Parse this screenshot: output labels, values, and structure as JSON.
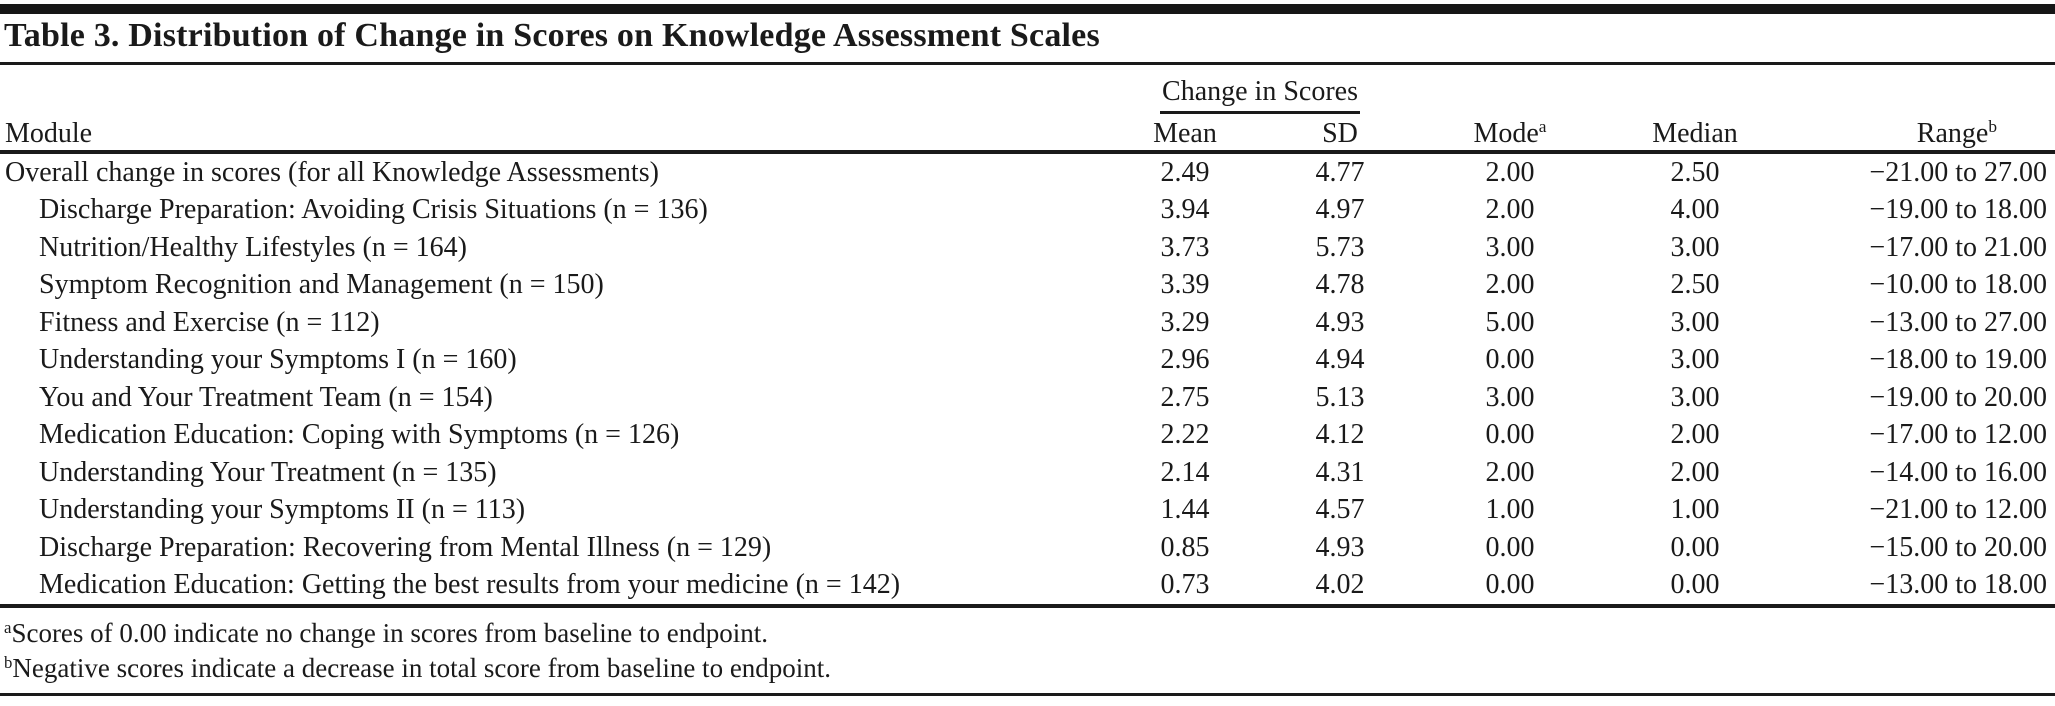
{
  "title": "Table 3. Distribution of Change in Scores on Knowledge Assessment Scales",
  "header": {
    "spanner": "Change in Scores",
    "module": "Module",
    "mean": "Mean",
    "sd": "SD",
    "mode": "Mode",
    "mode_sup": "a",
    "median": "Median",
    "range": "Range",
    "range_sup": "b"
  },
  "rows": [
    {
      "module": "Overall change in scores (for all Knowledge Assessments)",
      "mean": "2.49",
      "sd": "4.77",
      "mode": "2.00",
      "median": "2.50",
      "range": "−21.00 to 27.00"
    },
    {
      "module": "Discharge Preparation: Avoiding Crisis Situations (n = 136)",
      "mean": "3.94",
      "sd": "4.97",
      "mode": "2.00",
      "median": "4.00",
      "range": "−19.00 to 18.00"
    },
    {
      "module": "Nutrition/Healthy Lifestyles (n = 164)",
      "mean": "3.73",
      "sd": "5.73",
      "mode": "3.00",
      "median": "3.00",
      "range": "−17.00 to 21.00"
    },
    {
      "module": "Symptom Recognition and Management (n = 150)",
      "mean": "3.39",
      "sd": "4.78",
      "mode": "2.00",
      "median": "2.50",
      "range": "−10.00 to 18.00"
    },
    {
      "module": "Fitness and Exercise (n = 112)",
      "mean": "3.29",
      "sd": "4.93",
      "mode": "5.00",
      "median": "3.00",
      "range": "−13.00 to 27.00"
    },
    {
      "module": "Understanding your Symptoms I (n = 160)",
      "mean": "2.96",
      "sd": "4.94",
      "mode": "0.00",
      "median": "3.00",
      "range": "−18.00 to 19.00"
    },
    {
      "module": "You and Your Treatment Team (n = 154)",
      "mean": "2.75",
      "sd": "5.13",
      "mode": "3.00",
      "median": "3.00",
      "range": "−19.00 to 20.00"
    },
    {
      "module": "Medication Education: Coping with Symptoms (n = 126)",
      "mean": "2.22",
      "sd": "4.12",
      "mode": "0.00",
      "median": "2.00",
      "range": "−17.00 to 12.00"
    },
    {
      "module": "Understanding Your Treatment (n = 135)",
      "mean": "2.14",
      "sd": "4.31",
      "mode": "2.00",
      "median": "2.00",
      "range": "−14.00 to 16.00"
    },
    {
      "module": "Understanding your Symptoms II (n = 113)",
      "mean": "1.44",
      "sd": "4.57",
      "mode": "1.00",
      "median": "1.00",
      "range": "−21.00 to 12.00"
    },
    {
      "module": "Discharge Preparation: Recovering from Mental Illness (n = 129)",
      "mean": "0.85",
      "sd": "4.93",
      "mode": "0.00",
      "median": "0.00",
      "range": "−15.00 to 20.00"
    },
    {
      "module": "Medication Education: Getting the best results from your medicine (n = 142)",
      "mean": "0.73",
      "sd": "4.02",
      "mode": "0.00",
      "median": "0.00",
      "range": "−13.00 to 18.00"
    }
  ],
  "footnotes": [
    {
      "sup": "a",
      "text": "Scores of 0.00 indicate no change in scores from baseline to endpoint."
    },
    {
      "sup": "b",
      "text": "Negative scores indicate a decrease in total score from baseline to endpoint."
    }
  ]
}
